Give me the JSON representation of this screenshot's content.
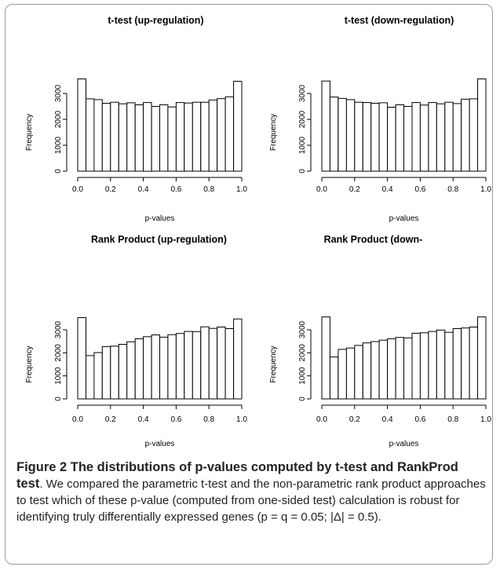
{
  "chart_data": [
    {
      "type": "bar",
      "title": "t-test (up-regulation)",
      "xlabel": "p-values",
      "ylabel": "Frequency",
      "xlim": [
        0,
        1
      ],
      "ylim": [
        0,
        3500
      ],
      "xticks": [
        "0.0",
        "0.2",
        "0.4",
        "0.6",
        "0.8",
        "1.0"
      ],
      "yticks": [
        "0",
        "1000",
        "2000",
        "3000"
      ],
      "bin_width": 0.05,
      "values": [
        3560,
        2790,
        2760,
        2620,
        2660,
        2600,
        2640,
        2560,
        2650,
        2500,
        2560,
        2480,
        2650,
        2630,
        2660,
        2660,
        2750,
        2800,
        2870,
        3470
      ]
    },
    {
      "type": "bar",
      "title": "t-test (down-regulation)",
      "xlabel": "p-values",
      "ylabel": "Frequency",
      "xlim": [
        0,
        1
      ],
      "ylim": [
        0,
        3500
      ],
      "xticks": [
        "0.0",
        "0.2",
        "0.4",
        "0.6",
        "0.8",
        "1.0"
      ],
      "yticks": [
        "0",
        "1000",
        "2000",
        "3000"
      ],
      "bin_width": 0.05,
      "values": [
        3480,
        2860,
        2810,
        2760,
        2660,
        2650,
        2620,
        2640,
        2470,
        2560,
        2500,
        2650,
        2550,
        2650,
        2600,
        2660,
        2610,
        2780,
        2790,
        3560
      ]
    },
    {
      "type": "bar",
      "title": "Rank Product (up-regulation)",
      "xlabel": "p-values",
      "ylabel": "Frequency",
      "xlim": [
        0,
        1
      ],
      "ylim": [
        0,
        3500
      ],
      "xticks": [
        "0.0",
        "0.2",
        "0.4",
        "0.6",
        "0.8",
        "1.0"
      ],
      "yticks": [
        "0",
        "1000",
        "2000",
        "3000"
      ],
      "bin_width": 0.05,
      "values": [
        3530,
        1880,
        2010,
        2270,
        2290,
        2370,
        2480,
        2610,
        2700,
        2780,
        2680,
        2790,
        2840,
        2930,
        2920,
        3130,
        3060,
        3120,
        3050,
        3470
      ]
    },
    {
      "type": "bar",
      "title": "Rank Product (down-",
      "xlabel": "p-values",
      "ylabel": "Frequency",
      "xlim": [
        0,
        1
      ],
      "ylim": [
        0,
        3500
      ],
      "xticks": [
        "0.0",
        "0.2",
        "0.4",
        "0.6",
        "0.8",
        "1.0"
      ],
      "yticks": [
        "0",
        "1000",
        "2000",
        "3000"
      ],
      "bin_width": 0.05,
      "values": [
        3560,
        1820,
        2150,
        2210,
        2320,
        2430,
        2490,
        2550,
        2610,
        2670,
        2650,
        2850,
        2870,
        2930,
        2990,
        2890,
        3050,
        3080,
        3120,
        3560
      ]
    }
  ],
  "caption": {
    "heading": "Figure 2 The distributions of p-values computed by t-test and RankProd test",
    "body": ". We compared the parametric t-test and the non-parametric rank product approaches to test which of these p-value (computed from one-sided test) calculation is robust for identifying truly differentially expressed genes (p = q = 0.05; |Δ| = 0.5)."
  }
}
